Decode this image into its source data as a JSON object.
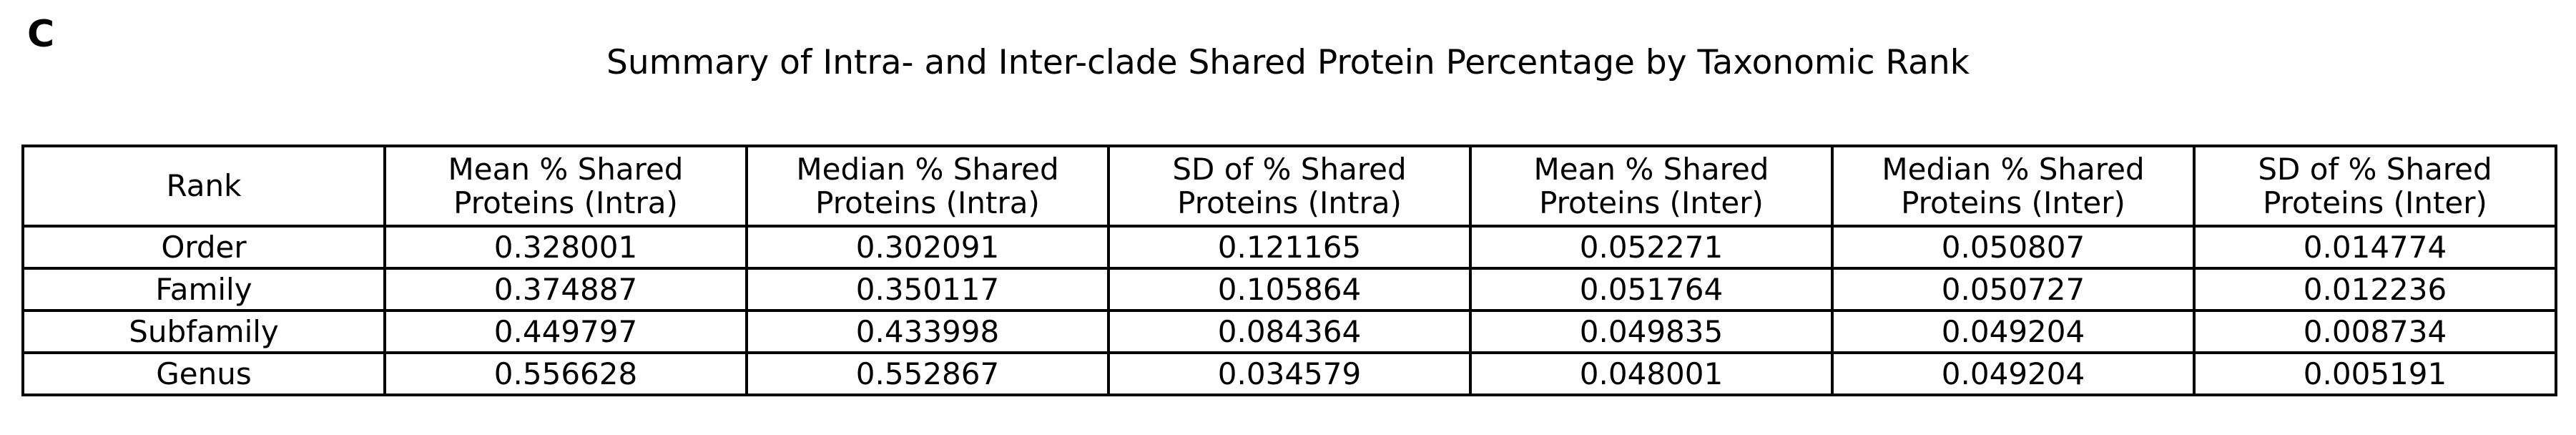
{
  "panel_label": "C",
  "chart_data": {
    "type": "table",
    "title": "Summary of Intra- and Inter-clade Shared Protein Percentage by Taxonomic Rank",
    "columns": [
      "Rank",
      "Mean % Shared\nProteins (Intra)",
      "Median % Shared\nProteins (Intra)",
      "SD of % Shared\nProteins (Intra)",
      "Mean % Shared\nProteins (Inter)",
      "Median % Shared\nProteins (Inter)",
      "SD of % Shared\nProteins (Inter)"
    ],
    "rows": [
      [
        "Order",
        "0.328001",
        "0.302091",
        "0.121165",
        "0.052271",
        "0.050807",
        "0.014774"
      ],
      [
        "Family",
        "0.374887",
        "0.350117",
        "0.105864",
        "0.051764",
        "0.050727",
        "0.012236"
      ],
      [
        "Subfamily",
        "0.449797",
        "0.433998",
        "0.084364",
        "0.049835",
        "0.049204",
        "0.008734"
      ],
      [
        "Genus",
        "0.556628",
        "0.552867",
        "0.034579",
        "0.048001",
        "0.049204",
        "0.005191"
      ]
    ]
  }
}
